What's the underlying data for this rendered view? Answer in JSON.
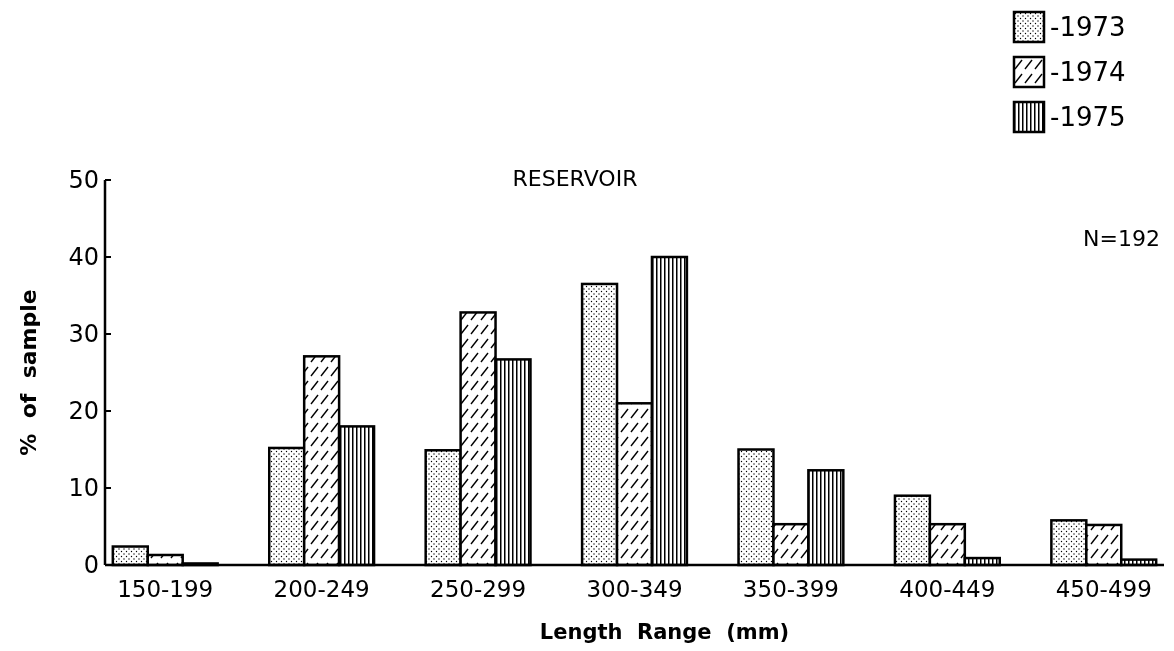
{
  "chart_data": {
    "type": "bar",
    "title": "RESERVOIR",
    "xlabel": "Length  Range  (mm)",
    "ylabel": "%  of  sample",
    "categories": [
      "150-199",
      "200-249",
      "250-299",
      "300-349",
      "350-399",
      "400-449",
      "450-499"
    ],
    "series": [
      {
        "name": "-1973",
        "color": "#000000",
        "values": [
          2.4,
          15.2,
          14.9,
          36.5,
          15,
          9,
          5.8
        ]
      },
      {
        "name": "-1974",
        "color": "#000000",
        "values": [
          1.3,
          27.1,
          32.8,
          21,
          5.3,
          5.3,
          5.2
        ]
      },
      {
        "name": "-1975",
        "color": "#000000",
        "values": [
          0.2,
          18,
          26.7,
          40,
          12.3,
          0.9,
          0.7
        ]
      }
    ],
    "ylim": [
      0,
      50
    ],
    "yticks": [
      0,
      10,
      20,
      30,
      40,
      50
    ],
    "grid": false,
    "legend": "top right",
    "annotations": [
      "N=192"
    ]
  }
}
